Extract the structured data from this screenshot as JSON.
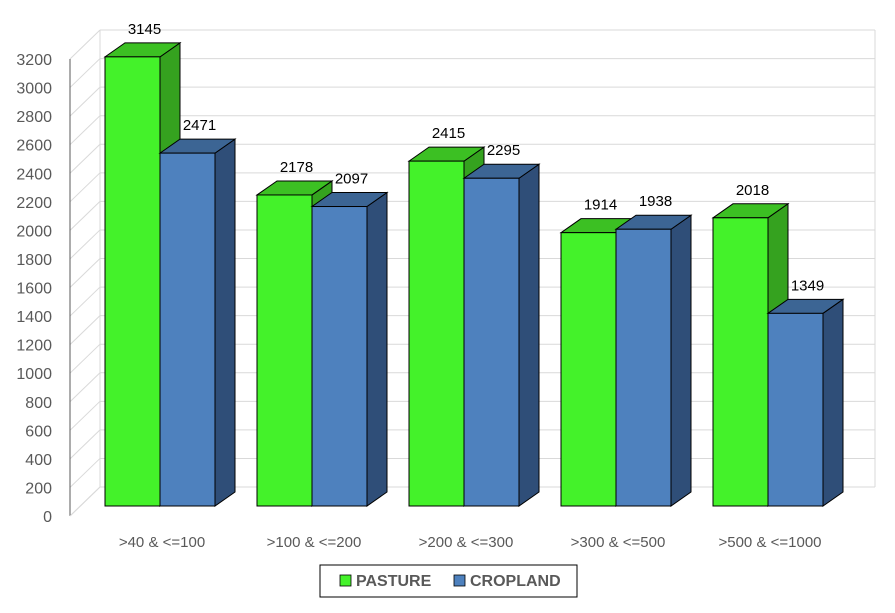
{
  "chart_data": {
    "type": "bar",
    "title": "",
    "xlabel": "",
    "ylabel": "",
    "categories": [
      ">40 & <=100",
      ">100 & <=200",
      ">200 & <=300",
      ">300 & <=500",
      ">500 & <=1000"
    ],
    "series": [
      {
        "name": "PASTURE",
        "values": [
          3145,
          2178,
          2415,
          1914,
          2018
        ],
        "color": "#44F22A",
        "side_color": "#35A21F",
        "top_color": "#3CC023"
      },
      {
        "name": "CROPLAND",
        "values": [
          2471,
          2097,
          2295,
          1938,
          1349
        ],
        "color": "#4E81BE",
        "side_color": "#2F4E78",
        "top_color": "#3C6594"
      }
    ],
    "ylim": [
      0,
      3200
    ],
    "yticks": [
      0,
      200,
      400,
      600,
      800,
      1000,
      1200,
      1400,
      1600,
      1800,
      2000,
      2200,
      2400,
      2600,
      2800,
      3000,
      3200
    ],
    "grid": true,
    "legend": "bottom",
    "style": "3d-clustered-column"
  }
}
